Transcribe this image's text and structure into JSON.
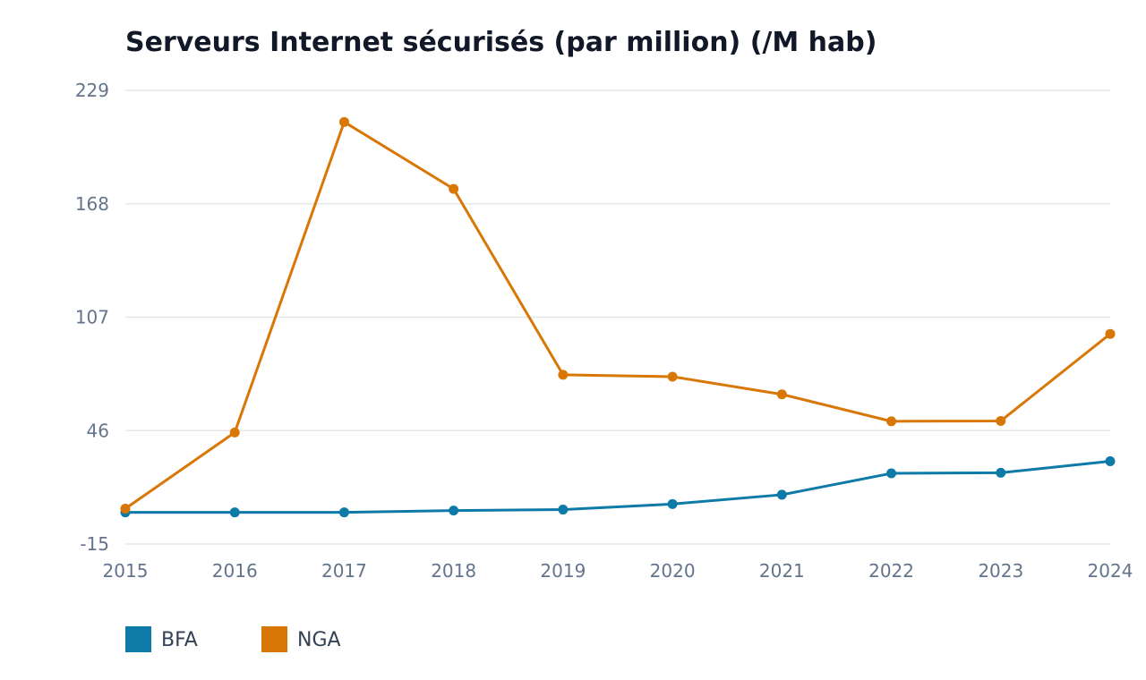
{
  "chart_data": {
    "type": "line",
    "title": "Serveurs Internet sécurisés (par million) (/M hab)",
    "x": [
      "2015",
      "2016",
      "2017",
      "2018",
      "2019",
      "2020",
      "2021",
      "2022",
      "2023",
      "2024"
    ],
    "series": [
      {
        "name": "BFA",
        "color": "#0e7aa8",
        "values": [
          2,
          2,
          2,
          3,
          3.5,
          6.5,
          11.5,
          23,
          23.3,
          29.5
        ]
      },
      {
        "name": "NGA",
        "color": "#d97706",
        "values": [
          4,
          45,
          212,
          176,
          76,
          75,
          65.5,
          51,
          51.2,
          98
        ]
      }
    ],
    "yticks": [
      "-15",
      "46",
      "107",
      "168",
      "229"
    ],
    "ylim": [
      -15,
      229
    ],
    "grid": true,
    "legend": "bottom-left"
  }
}
